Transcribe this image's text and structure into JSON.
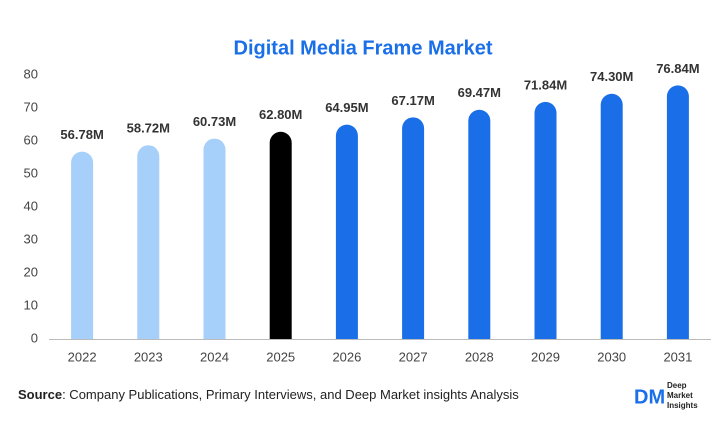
{
  "chart_data": {
    "type": "bar",
    "title": "Digital Media Frame Market",
    "categories": [
      "2022",
      "2023",
      "2024",
      "2025",
      "2026",
      "2027",
      "2028",
      "2029",
      "2030",
      "2031"
    ],
    "values": [
      56.78,
      58.72,
      60.73,
      62.8,
      64.95,
      67.17,
      69.47,
      71.84,
      74.3,
      76.84
    ],
    "value_labels": [
      "56.78M",
      "58.72M",
      "60.73M",
      "62.80M",
      "64.95M",
      "67.17M",
      "69.47M",
      "71.84M",
      "74.30M",
      "76.84M"
    ],
    "colors": [
      "#a6cffa",
      "#a6cffa",
      "#a6cffa",
      "#000000",
      "#1a6fe8",
      "#1a6fe8",
      "#1a6fe8",
      "#1a6fe8",
      "#1a6fe8",
      "#1a6fe8"
    ],
    "ylim": [
      0,
      80
    ],
    "yticks": [
      0,
      10,
      20,
      30,
      40,
      50,
      60,
      70,
      80
    ],
    "grid": false
  },
  "footer": {
    "source_label": "Source",
    "source_text": ": Company Publications, Primary Interviews, and Deep Market insights Analysis",
    "logo": {
      "mark": "DM",
      "lines": [
        "Deep",
        "Market",
        "Insights"
      ]
    }
  }
}
